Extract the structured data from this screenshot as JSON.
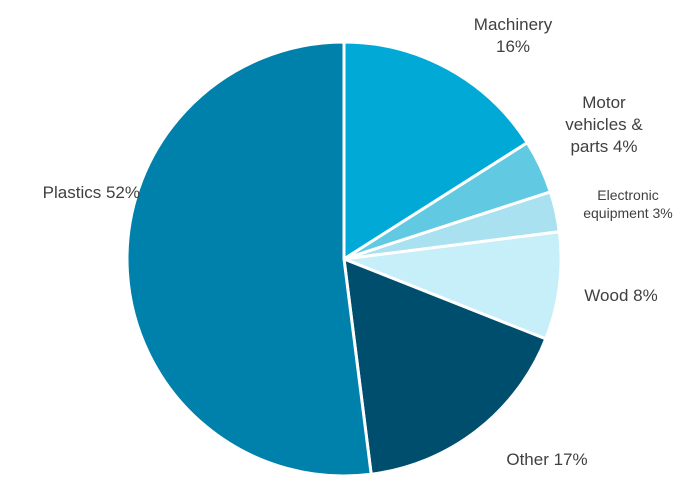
{
  "chart_data": {
    "type": "pie",
    "title": "",
    "categories": [
      "Machinery",
      "Motor vehicles & parts",
      "Electronic equipment",
      "Wood",
      "Other",
      "Plastics"
    ],
    "values": [
      16,
      4,
      3,
      8,
      17,
      52
    ],
    "unit": "%",
    "colors": [
      "#00a9d6",
      "#62c9e3",
      "#a9e1f0",
      "#c6effa",
      "#004e6e",
      "#0081ab"
    ],
    "legend": "none",
    "labels": [
      {
        "lines": [
          "Machinery",
          "16%"
        ]
      },
      {
        "lines": [
          "Motor",
          "vehicles &",
          "parts 4%"
        ]
      },
      {
        "lines": [
          "Electronic",
          "equipment 3%"
        ]
      },
      {
        "lines": [
          "Wood 8%"
        ]
      },
      {
        "lines": [
          "Other 17%"
        ]
      },
      {
        "lines": [
          "Plastics 52%"
        ]
      }
    ]
  }
}
